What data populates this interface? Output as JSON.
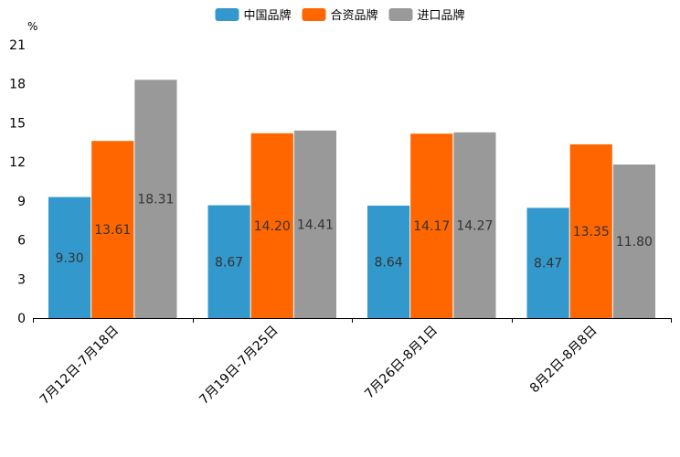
{
  "chart_data": {
    "type": "bar",
    "title": "",
    "unit_label": "%",
    "xlabel": "",
    "ylabel": "",
    "ylim": [
      0,
      21
    ],
    "yticks": [
      0,
      3,
      6,
      9,
      12,
      15,
      18,
      21
    ],
    "grid": false,
    "legend_position": "top-center",
    "categories": [
      "7月12日-7月18日",
      "7月19日-7月25日",
      "7月26日-8月1日",
      "8月2日-8月8日"
    ],
    "series": [
      {
        "name": "中国品牌",
        "color": "#3399cc",
        "values": [
          9.3,
          8.67,
          8.64,
          8.47
        ],
        "labels": [
          "9.30",
          "8.67",
          "8.64",
          "8.47"
        ]
      },
      {
        "name": "合资品牌",
        "color": "#ff6600",
        "values": [
          13.61,
          14.2,
          14.17,
          13.35
        ],
        "labels": [
          "13.61",
          "14.20",
          "14.17",
          "13.35"
        ]
      },
      {
        "name": "进口品牌",
        "color": "#999999",
        "values": [
          18.31,
          14.41,
          14.27,
          11.8
        ],
        "labels": [
          "18.31",
          "14.41",
          "14.27",
          "11.80"
        ]
      }
    ]
  }
}
